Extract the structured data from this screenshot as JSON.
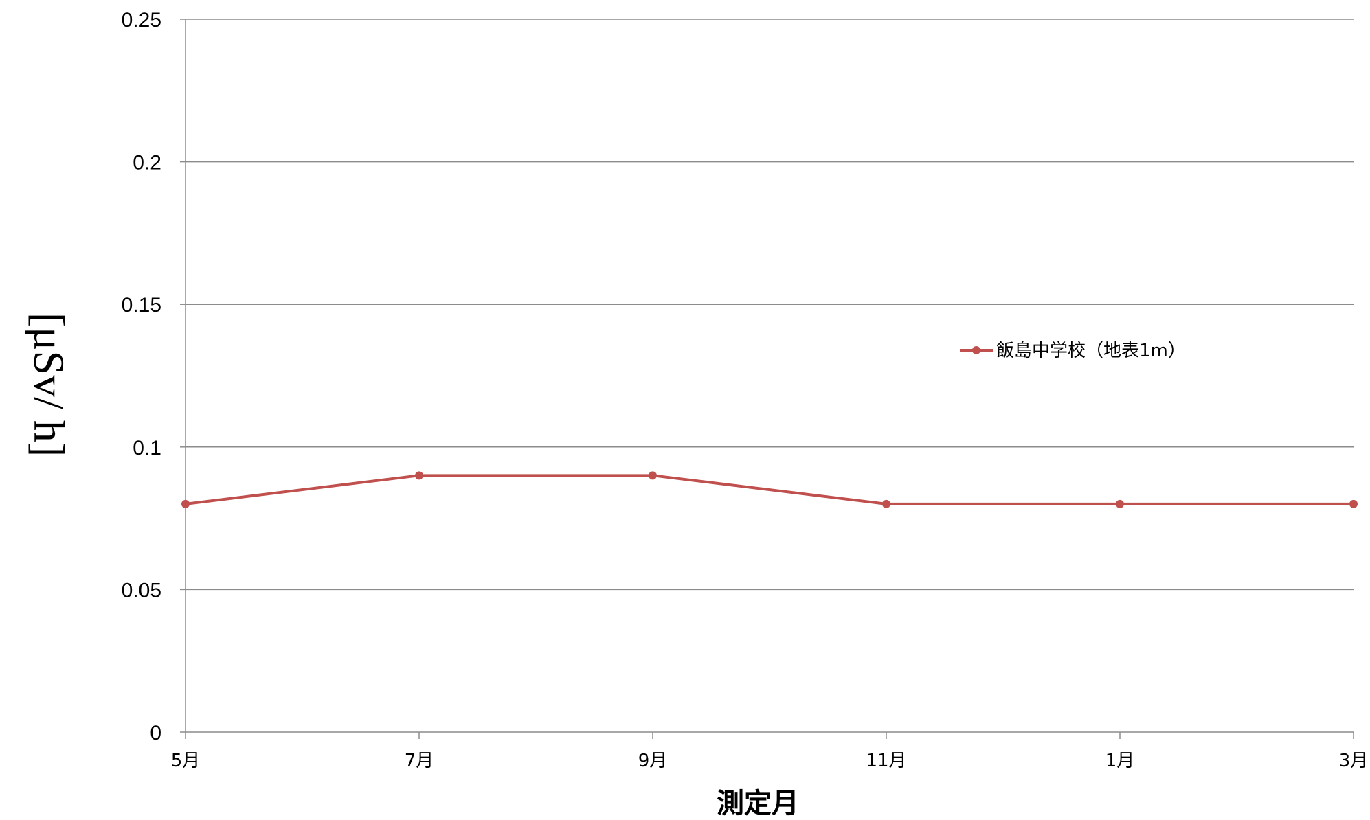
{
  "chart_data": {
    "type": "line",
    "title": "",
    "xlabel": "測定月",
    "ylabel": "[μSv/ h]",
    "categories": [
      "5月",
      "7月",
      "9月",
      "11月",
      "1月",
      "3月"
    ],
    "ylim": [
      0,
      0.25
    ],
    "yticks": [
      "0",
      "0.05",
      "0.1",
      "0.15",
      "0.2",
      "0.25"
    ],
    "grid": true,
    "legend_position": "right",
    "series": [
      {
        "name": "飯島中学校（地表1m）",
        "color": "#c0504d",
        "values": [
          0.08,
          0.09,
          0.09,
          0.08,
          0.08,
          0.08
        ]
      }
    ]
  }
}
